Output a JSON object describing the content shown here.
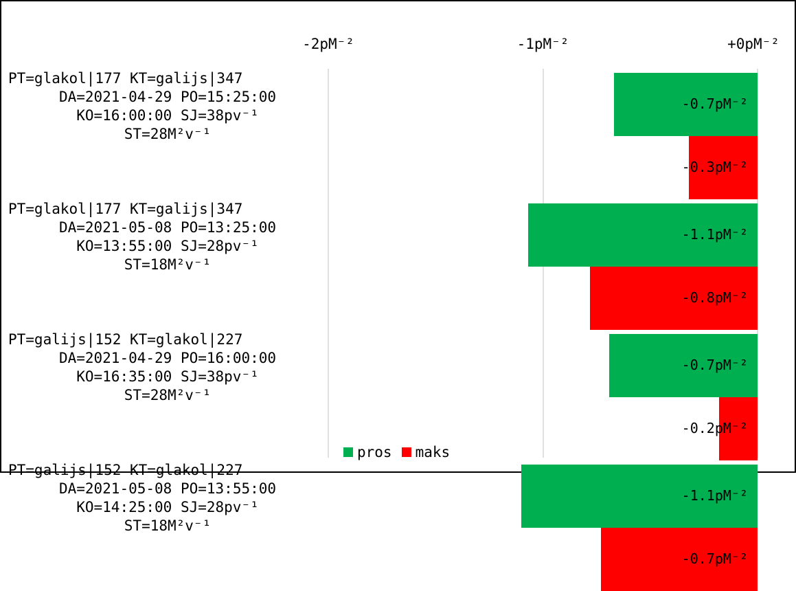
{
  "colors": {
    "pros": "#00b050",
    "maks": "#ff0000",
    "grid": "#e0e0e0"
  },
  "chart_data": {
    "type": "bar",
    "orientation": "horizontal",
    "x_ticks": [
      "-2pM⁻²",
      "-1pM⁻²",
      "+0pM⁻²"
    ],
    "x_tick_values": [
      -2,
      -1,
      0
    ],
    "xlim": [
      -2.0,
      0.0
    ],
    "grid": true,
    "legend_position": "bottom",
    "categories": [
      [
        "PT=glakol|177 KT=galijs|347",
        "DA=2021-04-29 PO=15:25:00",
        "KO=16:00:00 SJ=38pv⁻¹",
        "ST=28M²v⁻¹"
      ],
      [
        "PT=glakol|177 KT=galijs|347",
        "DA=2021-05-08 PO=13:25:00",
        "KO=13:55:00 SJ=28pv⁻¹",
        "ST=18M²v⁻¹"
      ],
      [
        "PT=galijs|152 KT=glakol|227",
        "DA=2021-04-29 PO=16:00:00",
        "KO=16:35:00 SJ=38pv⁻¹",
        "ST=28M²v⁻¹"
      ],
      [
        "PT=galijs|152 KT=glakol|227",
        "DA=2021-05-08 PO=13:55:00",
        "KO=14:25:00 SJ=28pv⁻¹",
        "ST=18M²v⁻¹"
      ]
    ],
    "series": [
      {
        "name": "pros",
        "values": [
          -0.67,
          -1.07,
          -0.69,
          -1.1
        ],
        "labels": [
          "-0.7pM⁻²",
          "-1.1pM⁻²",
          "-0.7pM⁻²",
          "-1.1pM⁻²"
        ]
      },
      {
        "name": "maks",
        "values": [
          -0.32,
          -0.78,
          -0.18,
          -0.73
        ],
        "labels": [
          "-0.3pM⁻²",
          "-0.8pM⁻²",
          "-0.2pM⁻²",
          "-0.7pM⁻²"
        ]
      }
    ]
  }
}
